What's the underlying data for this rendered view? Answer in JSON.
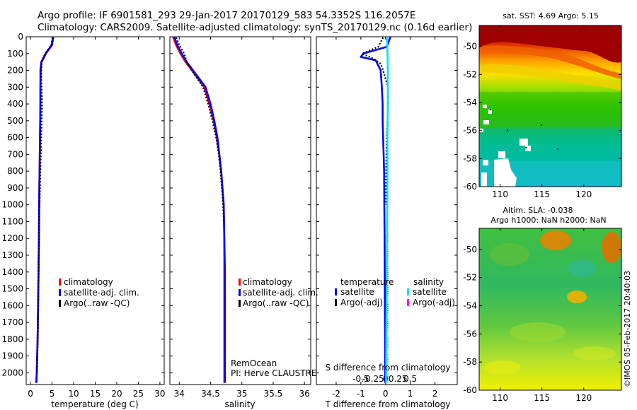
{
  "header": {
    "line1": "Argo profile: IF 6901581_293 29-Jan-2017 20170129_583 54.3352S 116.2057E",
    "line2": "Climatology: CARS2009. Satellite-adjusted climatology: synTS_20170129.nc (0.16d earlier)"
  },
  "credit": "©IMOS 05-Feb-2017 20:40:03",
  "colors": {
    "climatology": "#ff0000",
    "satellite_adj": "#0000ff",
    "argo": "#000000",
    "satellite_salinity": "#00e5ee",
    "argo_salinity_adj": "#ff00ff"
  },
  "chart_data": [
    {
      "id": "temperature",
      "type": "line",
      "xlabel": "temperature (deg C)",
      "ylabel": "",
      "xlim": [
        -1,
        31
      ],
      "ylim": [
        2070,
        0
      ],
      "xticks": [
        0,
        5,
        10,
        15,
        20,
        25,
        30
      ],
      "yticks": [
        0,
        100,
        200,
        300,
        400,
        500,
        600,
        700,
        800,
        900,
        1000,
        1100,
        1200,
        1300,
        1400,
        1500,
        1600,
        1700,
        1800,
        1900,
        2000
      ],
      "legend": [
        "climatology",
        "satellite-adj. clim.",
        "Argo(..raw -QC)"
      ],
      "series": [
        {
          "name": "climatology",
          "color": "#ff0000",
          "style": "solid",
          "x": [
            5.3,
            5.0,
            3.6,
            2.6,
            2.4,
            2.35,
            2.3,
            2.3,
            2.25,
            2.2,
            2.15,
            2.1,
            2.05,
            2.0,
            1.95,
            1.85,
            1.75,
            1.65,
            1.55,
            1.45,
            1.3
          ],
          "y": [
            0,
            50,
            100,
            150,
            200,
            250,
            300,
            400,
            500,
            600,
            700,
            800,
            900,
            1000,
            1200,
            1400,
            1600,
            1800,
            1900,
            2000,
            2060
          ]
        },
        {
          "name": "satellite-adj. clim.",
          "color": "#0000ff",
          "style": "solid",
          "x": [
            5.2,
            4.9,
            3.5,
            2.5,
            2.3,
            2.3,
            2.3,
            2.3,
            2.25,
            2.2,
            2.15,
            2.1,
            2.05,
            2.0,
            1.95,
            1.85,
            1.75,
            1.65,
            1.55,
            1.45,
            1.4
          ],
          "y": [
            0,
            50,
            100,
            150,
            200,
            250,
            300,
            400,
            500,
            600,
            700,
            800,
            900,
            1000,
            1200,
            1400,
            1600,
            1800,
            1900,
            2000,
            2060
          ]
        },
        {
          "name": "Argo(..raw -QC)",
          "color": "#000000",
          "style": "dotted",
          "x": [
            5.1,
            4.8,
            3.4,
            2.6,
            2.5,
            2.5,
            2.6,
            2.7,
            2.6,
            2.5,
            2.4,
            2.3,
            2.2,
            2.1,
            2.0,
            1.9,
            1.8,
            1.7,
            1.6,
            1.5
          ],
          "y": [
            5,
            50,
            100,
            150,
            200,
            250,
            300,
            400,
            500,
            600,
            700,
            800,
            900,
            1000,
            1200,
            1400,
            1600,
            1800,
            1900,
            2000
          ]
        }
      ]
    },
    {
      "id": "salinity",
      "type": "line",
      "xlabel": "salinity",
      "ylabel": "",
      "xlim": [
        33.85,
        36.1
      ],
      "ylim": [
        2070,
        0
      ],
      "xticks": [
        34,
        34.5,
        35,
        35.5,
        36
      ],
      "xticklabels": [
        "34",
        "34.5",
        "35",
        "35.5",
        "36"
      ],
      "legend": [
        "climatology",
        "satellite-adj. clim.",
        "Argo(..raw -QC)"
      ],
      "annotations": [
        "RemOcean",
        "PI: Herve CLAUSTRE"
      ],
      "series": [
        {
          "name": "climatology",
          "color": "#ff0000",
          "style": "solid",
          "x": [
            33.9,
            33.95,
            34.02,
            34.1,
            34.2,
            34.3,
            34.4,
            34.48,
            34.55,
            34.6,
            34.64,
            34.67,
            34.69,
            34.71,
            34.72,
            34.72,
            34.72,
            34.72,
            34.72
          ],
          "y": [
            0,
            50,
            100,
            150,
            200,
            250,
            300,
            400,
            500,
            600,
            700,
            800,
            900,
            1000,
            1200,
            1400,
            1600,
            1800,
            2060
          ]
        },
        {
          "name": "satellite-adj. clim.",
          "color": "#0000ff",
          "style": "solid",
          "x": [
            33.92,
            33.97,
            34.04,
            34.12,
            34.22,
            34.32,
            34.42,
            34.5,
            34.56,
            34.61,
            34.64,
            34.67,
            34.69,
            34.71,
            34.72,
            34.73,
            34.73,
            34.73,
            34.73
          ],
          "y": [
            0,
            50,
            100,
            150,
            200,
            250,
            300,
            400,
            500,
            600,
            700,
            800,
            900,
            1000,
            1200,
            1400,
            1600,
            1800,
            2060
          ]
        },
        {
          "name": "Argo(..raw -QC)",
          "color": "#000000",
          "style": "dotted",
          "x": [
            33.95,
            34.0,
            34.08,
            34.12,
            34.2,
            34.29,
            34.38,
            34.46,
            34.53,
            34.59,
            34.63,
            34.66,
            34.68,
            34.7,
            34.71
          ],
          "y": [
            5,
            50,
            100,
            150,
            200,
            250,
            300,
            400,
            500,
            600,
            700,
            800,
            900,
            1000,
            1100
          ]
        }
      ]
    },
    {
      "id": "difference",
      "type": "line",
      "xlabel": "T difference from climatology",
      "top_xlabel": "S difference from climatology",
      "xlim": [
        -2.8,
        2.9
      ],
      "ylim": [
        2070,
        0
      ],
      "xticks": [
        -2,
        -1,
        0,
        1,
        2
      ],
      "top_xticks": [
        -0.5,
        -0.25,
        0,
        0.25,
        0.5
      ],
      "top_xticklabels": [
        "-0.5",
        "-0.25",
        "0",
        "0.25",
        "0.5"
      ],
      "legend_headers": [
        "temperature",
        "salinity"
      ],
      "legend": [
        "satellite",
        "Argo(-adj)",
        "satellite",
        "Argo(-adj)"
      ],
      "series": [
        {
          "name": "temperature satellite",
          "color": "#0000ff",
          "style": "solid",
          "x": [
            0.2,
            0.05,
            -0.9,
            -1.0,
            -0.4,
            -0.2,
            -0.15,
            -0.12,
            -0.12,
            -0.1,
            -0.08,
            -0.06,
            -0.05,
            -0.04,
            -0.03,
            -0.02,
            -0.02
          ],
          "y": [
            0,
            60,
            100,
            120,
            140,
            200,
            300,
            400,
            500,
            600,
            700,
            800,
            1000,
            1200,
            1500,
            1800,
            2060
          ]
        },
        {
          "name": "temperature Argo(-adj)",
          "color": "#000000",
          "style": "dotted",
          "x": [
            -0.1,
            -0.3,
            -0.95,
            -0.5,
            -0.2,
            -0.1,
            0.1,
            0.1,
            0.05,
            0.02,
            0.0
          ],
          "y": [
            5,
            60,
            100,
            130,
            160,
            200,
            300,
            400,
            600,
            800,
            1000
          ]
        },
        {
          "name": "salinity satellite",
          "color": "#00e5ee",
          "style": "solid",
          "x": [
            0.05,
            0.08,
            0.09,
            0.09,
            0.08,
            0.08,
            0.07,
            0.06,
            0.05,
            0.04,
            0.03,
            0.02
          ],
          "y": [
            0,
            100,
            200,
            400,
            600,
            800,
            1000,
            1200,
            1400,
            1600,
            1800,
            2060
          ]
        }
      ]
    },
    {
      "id": "sst_map",
      "type": "heatmap",
      "title": "sat. SST: 4.69 Argo: 5.15",
      "xlim": [
        107.5,
        124.5
      ],
      "ylim": [
        -60,
        -48.5
      ],
      "xticks": [
        110,
        115,
        120
      ],
      "yticks": [
        -50,
        -52,
        -54,
        -56,
        -58,
        -60
      ]
    },
    {
      "id": "sla_map",
      "type": "heatmap",
      "title_line1": "Altim. SLA: -0.038",
      "title_line2": "Argo h1000: NaN h2000: NaN",
      "xlim": [
        107.5,
        124.5
      ],
      "ylim": [
        -60,
        -48.5
      ],
      "xticks": [
        110,
        115,
        120
      ],
      "yticks": [
        -50,
        -52,
        -54,
        -56,
        -58,
        -60
      ]
    }
  ]
}
